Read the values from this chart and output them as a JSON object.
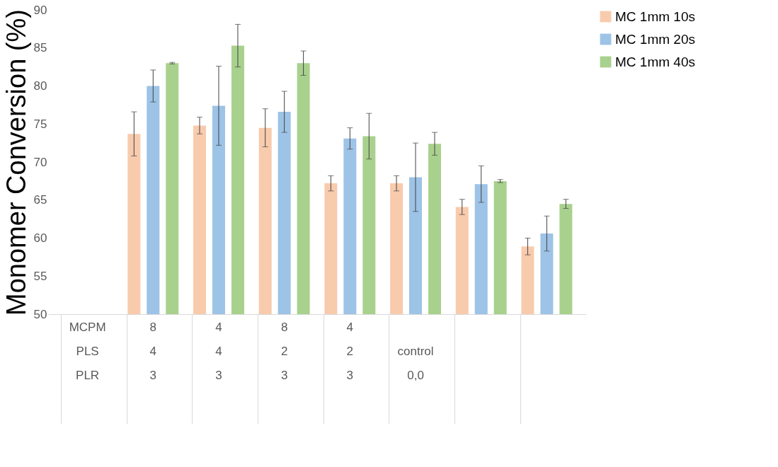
{
  "chart_data": {
    "type": "bar",
    "ylabel": "Monomer Conversion (%)",
    "categories": [
      "MCPM\nPLS\nPLR",
      "8\n4\n3",
      "4\n4\n3",
      "8\n2\n3",
      "4\n2\n3",
      "\n\ncontrol\n0,0",
      null,
      null
    ],
    "series": [
      {
        "name": "MC 1mm 10s",
        "color": "#f8cbad",
        "values": [
          50,
          73.7,
          74.8,
          74.5,
          67.2,
          67.2,
          64.1,
          58.9
        ],
        "errors": [
          null,
          2.9,
          1.1,
          2.5,
          1.0,
          1.0,
          1.0,
          1.1
        ]
      },
      {
        "name": "MC 1mm 20s",
        "color": "#9dc3e6",
        "values": [
          50,
          80.0,
          77.4,
          76.6,
          73.1,
          68.0,
          67.1,
          60.6
        ],
        "errors": [
          null,
          2.1,
          5.2,
          2.7,
          1.4,
          4.5,
          2.4,
          2.3
        ]
      },
      {
        "name": "MC 1mm 40s",
        "color": "#a9d18e",
        "values": [
          50,
          83.0,
          85.3,
          83.0,
          73.4,
          72.4,
          67.5,
          64.5
        ],
        "errors": [
          null,
          0.1,
          2.8,
          1.6,
          3.0,
          1.5,
          0.2,
          0.6
        ]
      }
    ],
    "ylim": [
      50,
      90
    ],
    "yticks": [
      50,
      55,
      60,
      65,
      70,
      75,
      80,
      85,
      90
    ],
    "grid": false,
    "legend": "right"
  }
}
